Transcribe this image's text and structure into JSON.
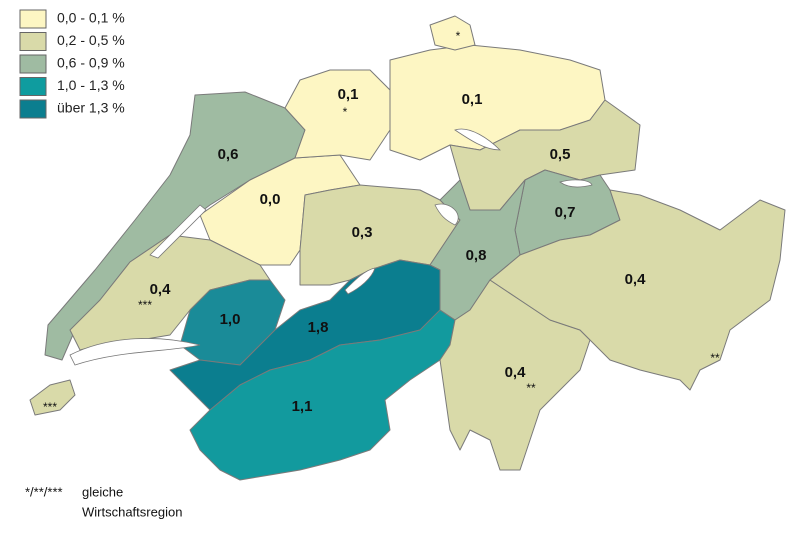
{
  "legend": {
    "items": [
      {
        "label": "0,0 - 0,1 %",
        "color": "#fdf6c3"
      },
      {
        "label": "0,2 - 0,5 %",
        "color": "#d9daa9"
      },
      {
        "label": "0,6 - 0,9 %",
        "color": "#9fbba2"
      },
      {
        "label": "1,0 - 1,3 %",
        "color": "#0f9c9f"
      },
      {
        "label": "über 1,3 %",
        "color": "#0b7e8f"
      }
    ]
  },
  "regions": [
    {
      "label": "0,6",
      "color": "#9fbba2"
    },
    {
      "label": "0,0",
      "color": "#fdf6c3"
    },
    {
      "label": "0,1",
      "color": "#fdf6c3"
    },
    {
      "label": "0,1",
      "color": "#fdf6c3"
    },
    {
      "color": "#fdf6c3"
    },
    {
      "label": "0,5",
      "color": "#d9daa9"
    },
    {
      "label": "0,7",
      "color": "#9fbba2"
    },
    {
      "label": "0,3",
      "color": "#d9daa9"
    },
    {
      "label": "0,8",
      "color": "#9fbba2"
    },
    {
      "label": "0,4",
      "color": "#d9daa9"
    },
    {
      "label": "1,0",
      "color": "#1a8b98"
    },
    {
      "label": "1,8",
      "color": "#0b7e8f"
    },
    {
      "label": "1,1",
      "color": "#129a9e"
    },
    {
      "label": "0,4",
      "color": "#d9daa9"
    },
    {
      "label": "0,4",
      "color": "#d9daa9"
    },
    {
      "color": "#d9daa9"
    }
  ],
  "markers": [
    "*",
    "*",
    "***",
    "**",
    "**",
    "***"
  ],
  "footnote": {
    "marker": "*/**/***",
    "line1": "gleiche",
    "line2": "Wirtschaftsregion"
  }
}
